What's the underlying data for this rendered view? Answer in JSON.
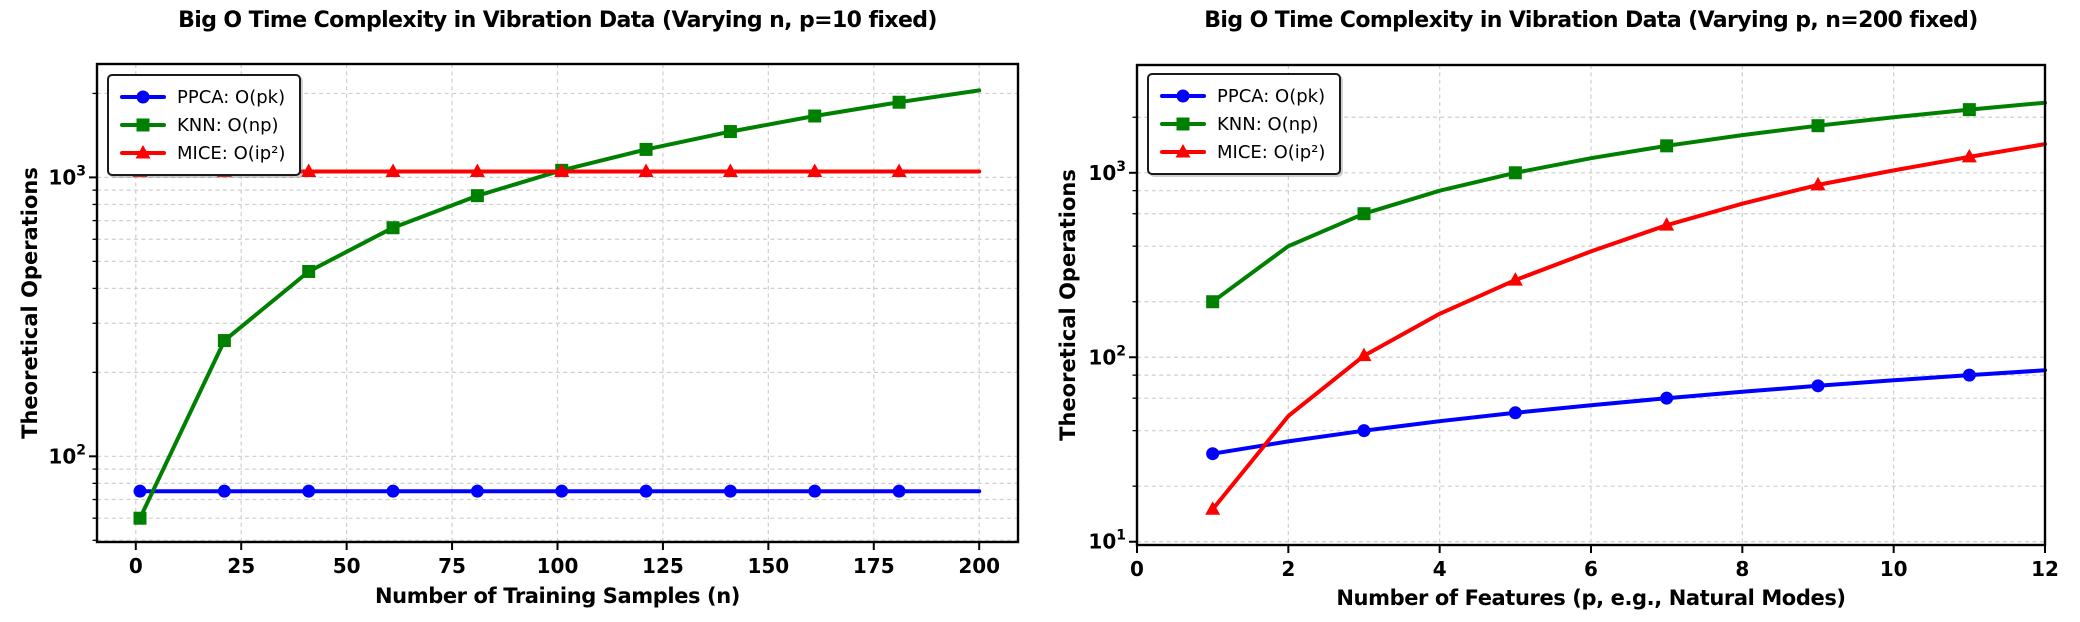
{
  "figure": {
    "background": "#ffffff",
    "text_color": "#000000",
    "grid_color": "#cfcfcf",
    "spine_color": "#000000"
  },
  "chart_data": [
    {
      "type": "line",
      "title": "Big O Time Complexity in Vibration Data (Varying n, p=10 fixed)",
      "xlabel": "Number of Training Samples (n)",
      "ylabel": "Theoretical Operations",
      "xscale": "linear",
      "yscale": "log",
      "xlim": [
        -9.2,
        209.2
      ],
      "ylim": [
        49.3,
        2550
      ],
      "grid": "both",
      "legend_position": "upper left",
      "xticks": [
        {
          "value": 0,
          "label": "0"
        },
        {
          "value": 25,
          "label": "25"
        },
        {
          "value": 50,
          "label": "50"
        },
        {
          "value": 75,
          "label": "75"
        },
        {
          "value": 100,
          "label": "100"
        },
        {
          "value": 125,
          "label": "125"
        },
        {
          "value": 150,
          "label": "150"
        },
        {
          "value": 175,
          "label": "175"
        },
        {
          "value": 200,
          "label": "200"
        }
      ],
      "yticks": [
        {
          "value": 100,
          "base": "10",
          "exp": "2"
        },
        {
          "value": 1000,
          "base": "10",
          "exp": "3"
        }
      ],
      "y_minor_gridlines": [
        50,
        60,
        70,
        80,
        90,
        200,
        300,
        400,
        500,
        600,
        700,
        800,
        900,
        2000
      ],
      "x": [
        1,
        21,
        41,
        61,
        81,
        101,
        121,
        141,
        161,
        181,
        200
      ],
      "series": [
        {
          "name": "PPCA: O(pk)",
          "slug": "ppca",
          "color": "#0000ff",
          "marker": "circle",
          "values": [
            75,
            75,
            75,
            75,
            75,
            75,
            75,
            75,
            75,
            75,
            75
          ],
          "marker_indices": [
            0,
            1,
            2,
            3,
            4,
            5,
            6,
            7,
            8,
            9
          ]
        },
        {
          "name": "KNN: O(np)",
          "slug": "knn",
          "color": "#008000",
          "marker": "square",
          "values": [
            60,
            260,
            460,
            660,
            860,
            1060,
            1260,
            1460,
            1660,
            1860,
            2050
          ],
          "marker_indices": [
            0,
            1,
            2,
            3,
            4,
            5,
            6,
            7,
            8,
            9
          ]
        },
        {
          "name": "MICE: O(ip²)",
          "slug": "mice",
          "color": "#ff0000",
          "marker": "triangle",
          "values": [
            1050,
            1050,
            1050,
            1050,
            1050,
            1050,
            1050,
            1050,
            1050,
            1050,
            1050
          ],
          "marker_indices": [
            0,
            1,
            2,
            3,
            4,
            5,
            6,
            7,
            8,
            9
          ]
        }
      ]
    },
    {
      "type": "line",
      "title": "Big O Time Complexity in Vibration Data (Varying p, n=200 fixed)",
      "xlabel": "Number of Features (p, e.g., Natural Modes)",
      "ylabel": "Theoretical Operations",
      "xscale": "linear",
      "yscale": "log",
      "xlim": [
        0,
        12
      ],
      "ylim": [
        9.6,
        3840
      ],
      "grid": "both",
      "legend_position": "upper left",
      "xticks": [
        {
          "value": 0,
          "label": "0"
        },
        {
          "value": 2,
          "label": "2"
        },
        {
          "value": 4,
          "label": "4"
        },
        {
          "value": 6,
          "label": "6"
        },
        {
          "value": 8,
          "label": "8"
        },
        {
          "value": 10,
          "label": "10"
        },
        {
          "value": 12,
          "label": "12"
        }
      ],
      "yticks": [
        {
          "value": 10,
          "base": "10",
          "exp": "1"
        },
        {
          "value": 100,
          "base": "10",
          "exp": "2"
        },
        {
          "value": 1000,
          "base": "10",
          "exp": "3"
        }
      ],
      "y_minor_gridlines": [
        20,
        40,
        60,
        80,
        200,
        400,
        600,
        800,
        2000
      ],
      "x": [
        1,
        2,
        3,
        4,
        5,
        6,
        7,
        8,
        9,
        10,
        11,
        12
      ],
      "series": [
        {
          "name": "PPCA: O(pk)",
          "slug": "ppca",
          "color": "#0000ff",
          "marker": "circle",
          "values": [
            30,
            35,
            40,
            45,
            50,
            55,
            60,
            65,
            70,
            75,
            80,
            85
          ],
          "marker_indices": [
            0,
            2,
            4,
            6,
            8,
            10
          ]
        },
        {
          "name": "KNN: O(np)",
          "slug": "knn",
          "color": "#008000",
          "marker": "square",
          "values": [
            200,
            400,
            600,
            800,
            1000,
            1200,
            1400,
            1600,
            1800,
            2000,
            2200,
            2400
          ],
          "marker_indices": [
            0,
            2,
            4,
            6,
            8,
            10
          ]
        },
        {
          "name": "MICE: O(ip²)",
          "slug": "mice",
          "color": "#ff0000",
          "marker": "triangle",
          "values": [
            15,
            48,
            102,
            172,
            262,
            375,
            520,
            680,
            860,
            1030,
            1220,
            1430
          ],
          "marker_indices": [
            0,
            2,
            4,
            6,
            8,
            10
          ]
        }
      ]
    }
  ]
}
